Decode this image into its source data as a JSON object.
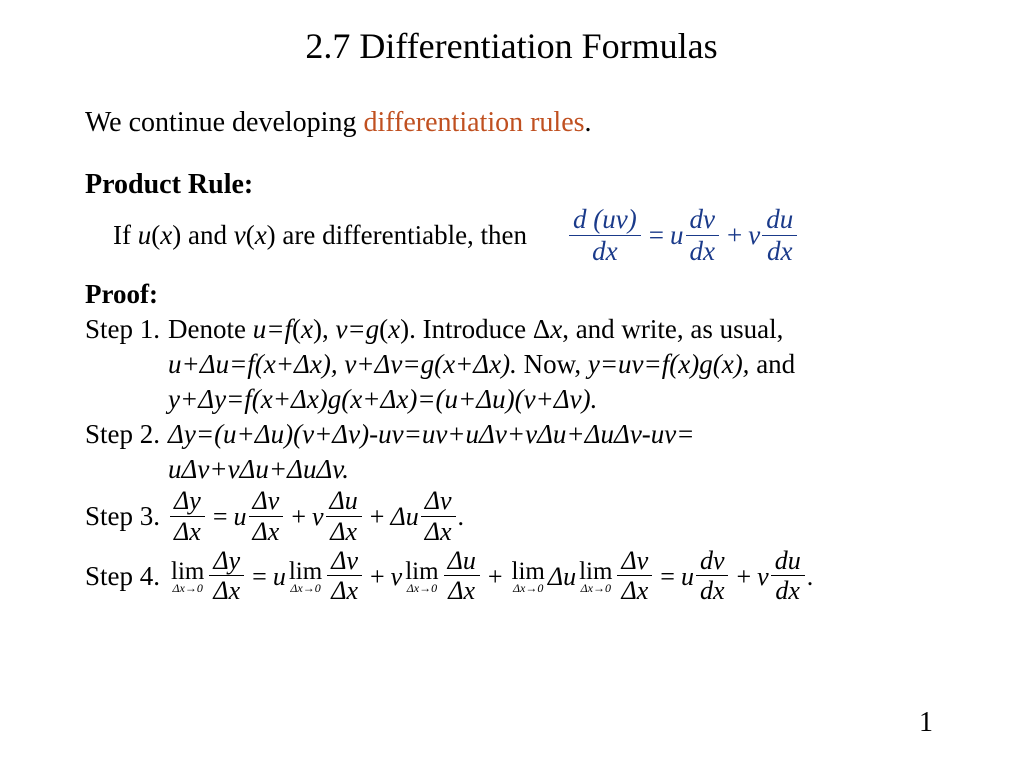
{
  "title": "2.7 Differentiation Formulas",
  "intro_prefix": "We continue developing ",
  "intro_highlight": "differentiation rules",
  "intro_suffix": ".",
  "rule_heading": "Product Rule:",
  "rule_text_prefix": "If ",
  "rule_u": "u",
  "rule_paren1": "(",
  "rule_x1": "x",
  "rule_paren2": ") and ",
  "rule_v": "v",
  "rule_paren3": "(",
  "rule_x2": "x",
  "rule_paren4": ") are differentiable, then",
  "formula": {
    "f1_num": "d (uv)",
    "f1_den": "dx",
    "eq": "=",
    "u": "u",
    "f2_num": "dv",
    "f2_den": "dx",
    "plus": "+",
    "v": "v",
    "f3_num": "du",
    "f3_den": "dx"
  },
  "proof_heading": "Proof:",
  "step1_label": "Step 1.",
  "step1_line1a": "Denote ",
  "step1_line1b": "u=f",
  "step1_line1c": "(",
  "step1_line1d": "x",
  "step1_line1e": "),  ",
  "step1_line1f": "v=g",
  "step1_line1g": "(",
  "step1_line1h": "x",
  "step1_line1i": "). Introduce Δ",
  "step1_line1j": "x",
  "step1_line1k": ", and write, as usual,",
  "step1_line2": "u+Δu=f(x+Δx),  v+Δv=g(x+Δx). ",
  "step1_line2b": "Now, ",
  "step1_line2c": "y=uv=f(x)g(x),",
  "step1_line2d": " and",
  "step1_line3": "y+Δy=f(x+Δx)g(x+Δx)=(u+Δu)(v+Δv).",
  "step2_label": "Step 2.",
  "step2_line1": "Δy=(u+Δu)(v+Δv)-uv=uv+uΔv+vΔu+ΔuΔv-uv=",
  "step2_line2": "uΔv+vΔu+ΔuΔv.",
  "step3_label": "Step 3.",
  "step3": {
    "f1n": "Δy",
    "f1d": "Δx",
    "eq": "=",
    "u": "u",
    "f2n": "Δv",
    "f2d": "Δx",
    "p1": "+",
    "v": "v",
    "f3n": "Δu",
    "f3d": "Δx",
    "p2": "+",
    "du": "Δu",
    "f4n": "Δv",
    "f4d": "Δx",
    "dot": "."
  },
  "step4_label": "Step 4.",
  "step4": {
    "lim": "lim",
    "limsub": "Δx→0",
    "f1n": "Δy",
    "f1d": "Δx",
    "eq1": "=",
    "u": "u",
    "f2n": "Δv",
    "f2d": "Δx",
    "p1": "+",
    "v": "v",
    "f3n": "Δu",
    "f3d": "Δx",
    "p2": "+",
    "du": "Δu",
    "f4n": "Δv",
    "f4d": "Δx",
    "eq2": "=",
    "u2": "u",
    "f5n": "dv",
    "f5d": "dx",
    "p3": "+",
    "v2": "v",
    "f6n": "du",
    "f6d": "dx",
    "dot": "."
  },
  "page_number": "1",
  "colors": {
    "text": "#000000",
    "highlight": "#c05020",
    "formula": "#1a3a8a",
    "background": "#ffffff"
  }
}
